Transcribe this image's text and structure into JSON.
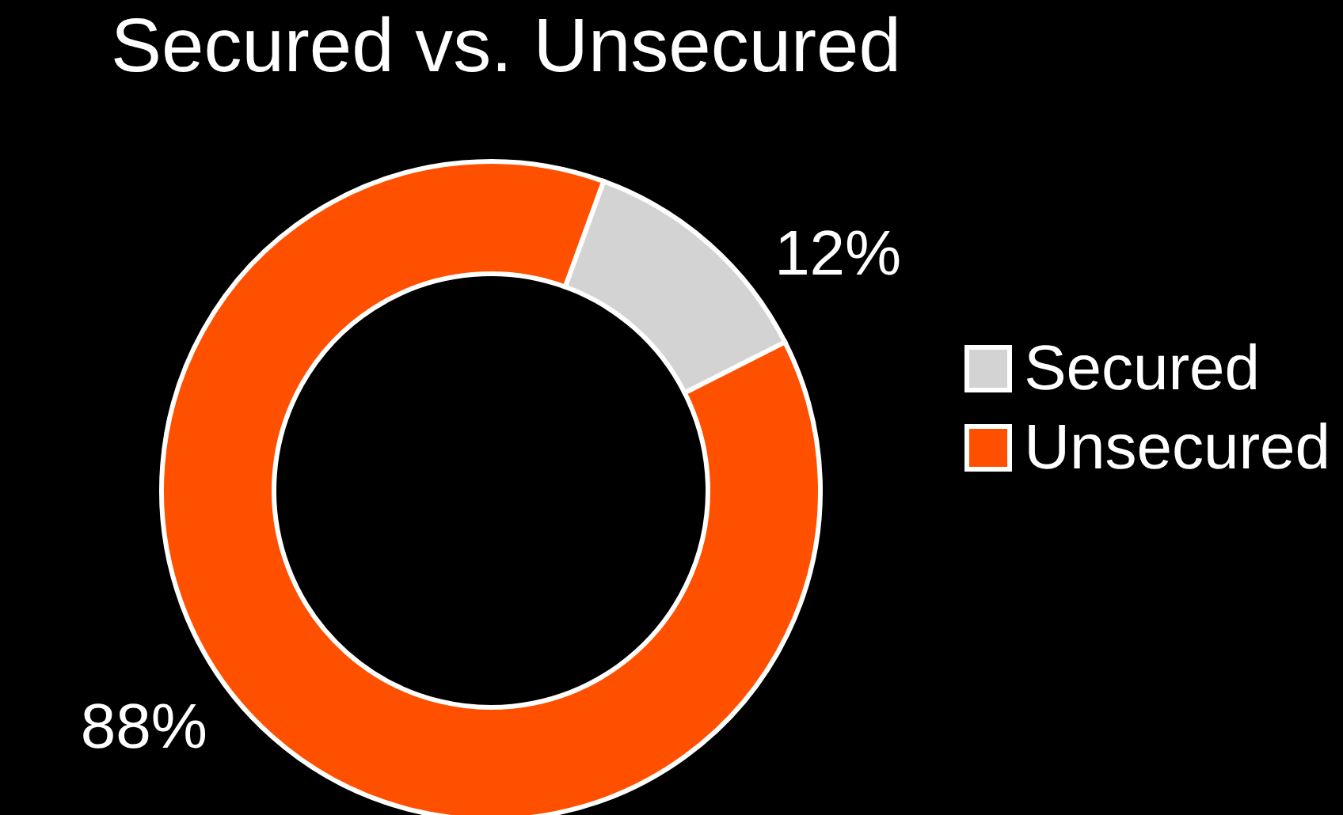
{
  "chart_data": {
    "type": "donut",
    "title": "Secured vs. Unsecured",
    "categories": [
      "Secured",
      "Unsecured"
    ],
    "values": [
      12,
      88
    ],
    "colors": [
      "#d3d3d3",
      "#ff5000"
    ],
    "value_labels": [
      "12%",
      "88%"
    ],
    "legend": "right"
  }
}
